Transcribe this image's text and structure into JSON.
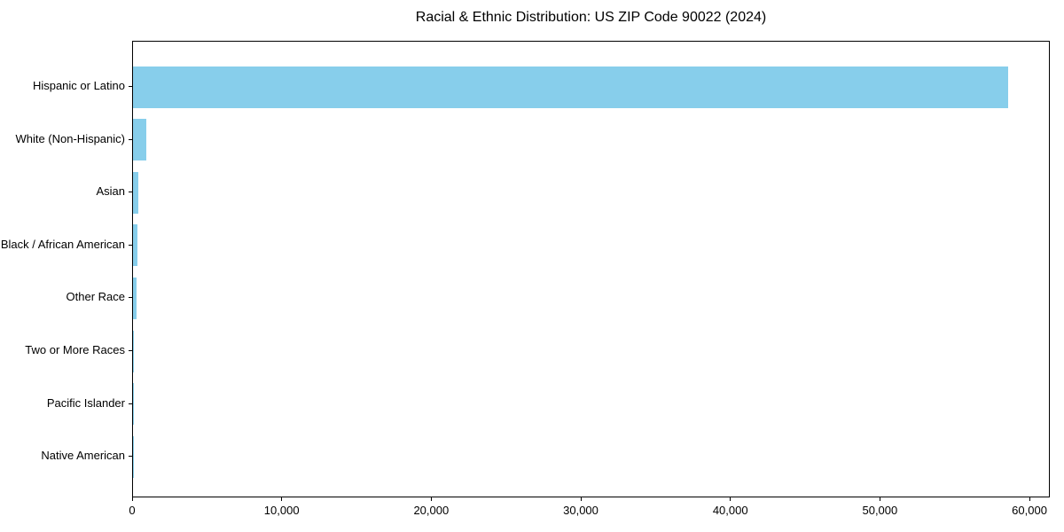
{
  "chart_data": {
    "type": "bar",
    "orientation": "horizontal",
    "title": "Racial & Ethnic Distribution: US ZIP Code 90022 (2024)",
    "categories": [
      "Hispanic or Latino",
      "White (Non-Hispanic)",
      "Asian",
      "Black / African American",
      "Other Race",
      "Two or More Races",
      "Pacific Islander",
      "Native American"
    ],
    "values": [
      58500,
      890,
      350,
      290,
      230,
      40,
      15,
      10
    ],
    "xlabel": "",
    "ylabel": "",
    "xlim": [
      0,
      61360
    ],
    "x_ticks": [
      0,
      10000,
      20000,
      30000,
      40000,
      50000,
      60000
    ],
    "x_tick_labels": [
      "0",
      "10,000",
      "20,000",
      "30,000",
      "40,000",
      "50,000",
      "60,000"
    ],
    "grid": "off",
    "legend": "none",
    "bar_color": "#87CEEB",
    "spine_color": "#000000",
    "text_color": "#000000",
    "background_color": "#ffffff"
  }
}
